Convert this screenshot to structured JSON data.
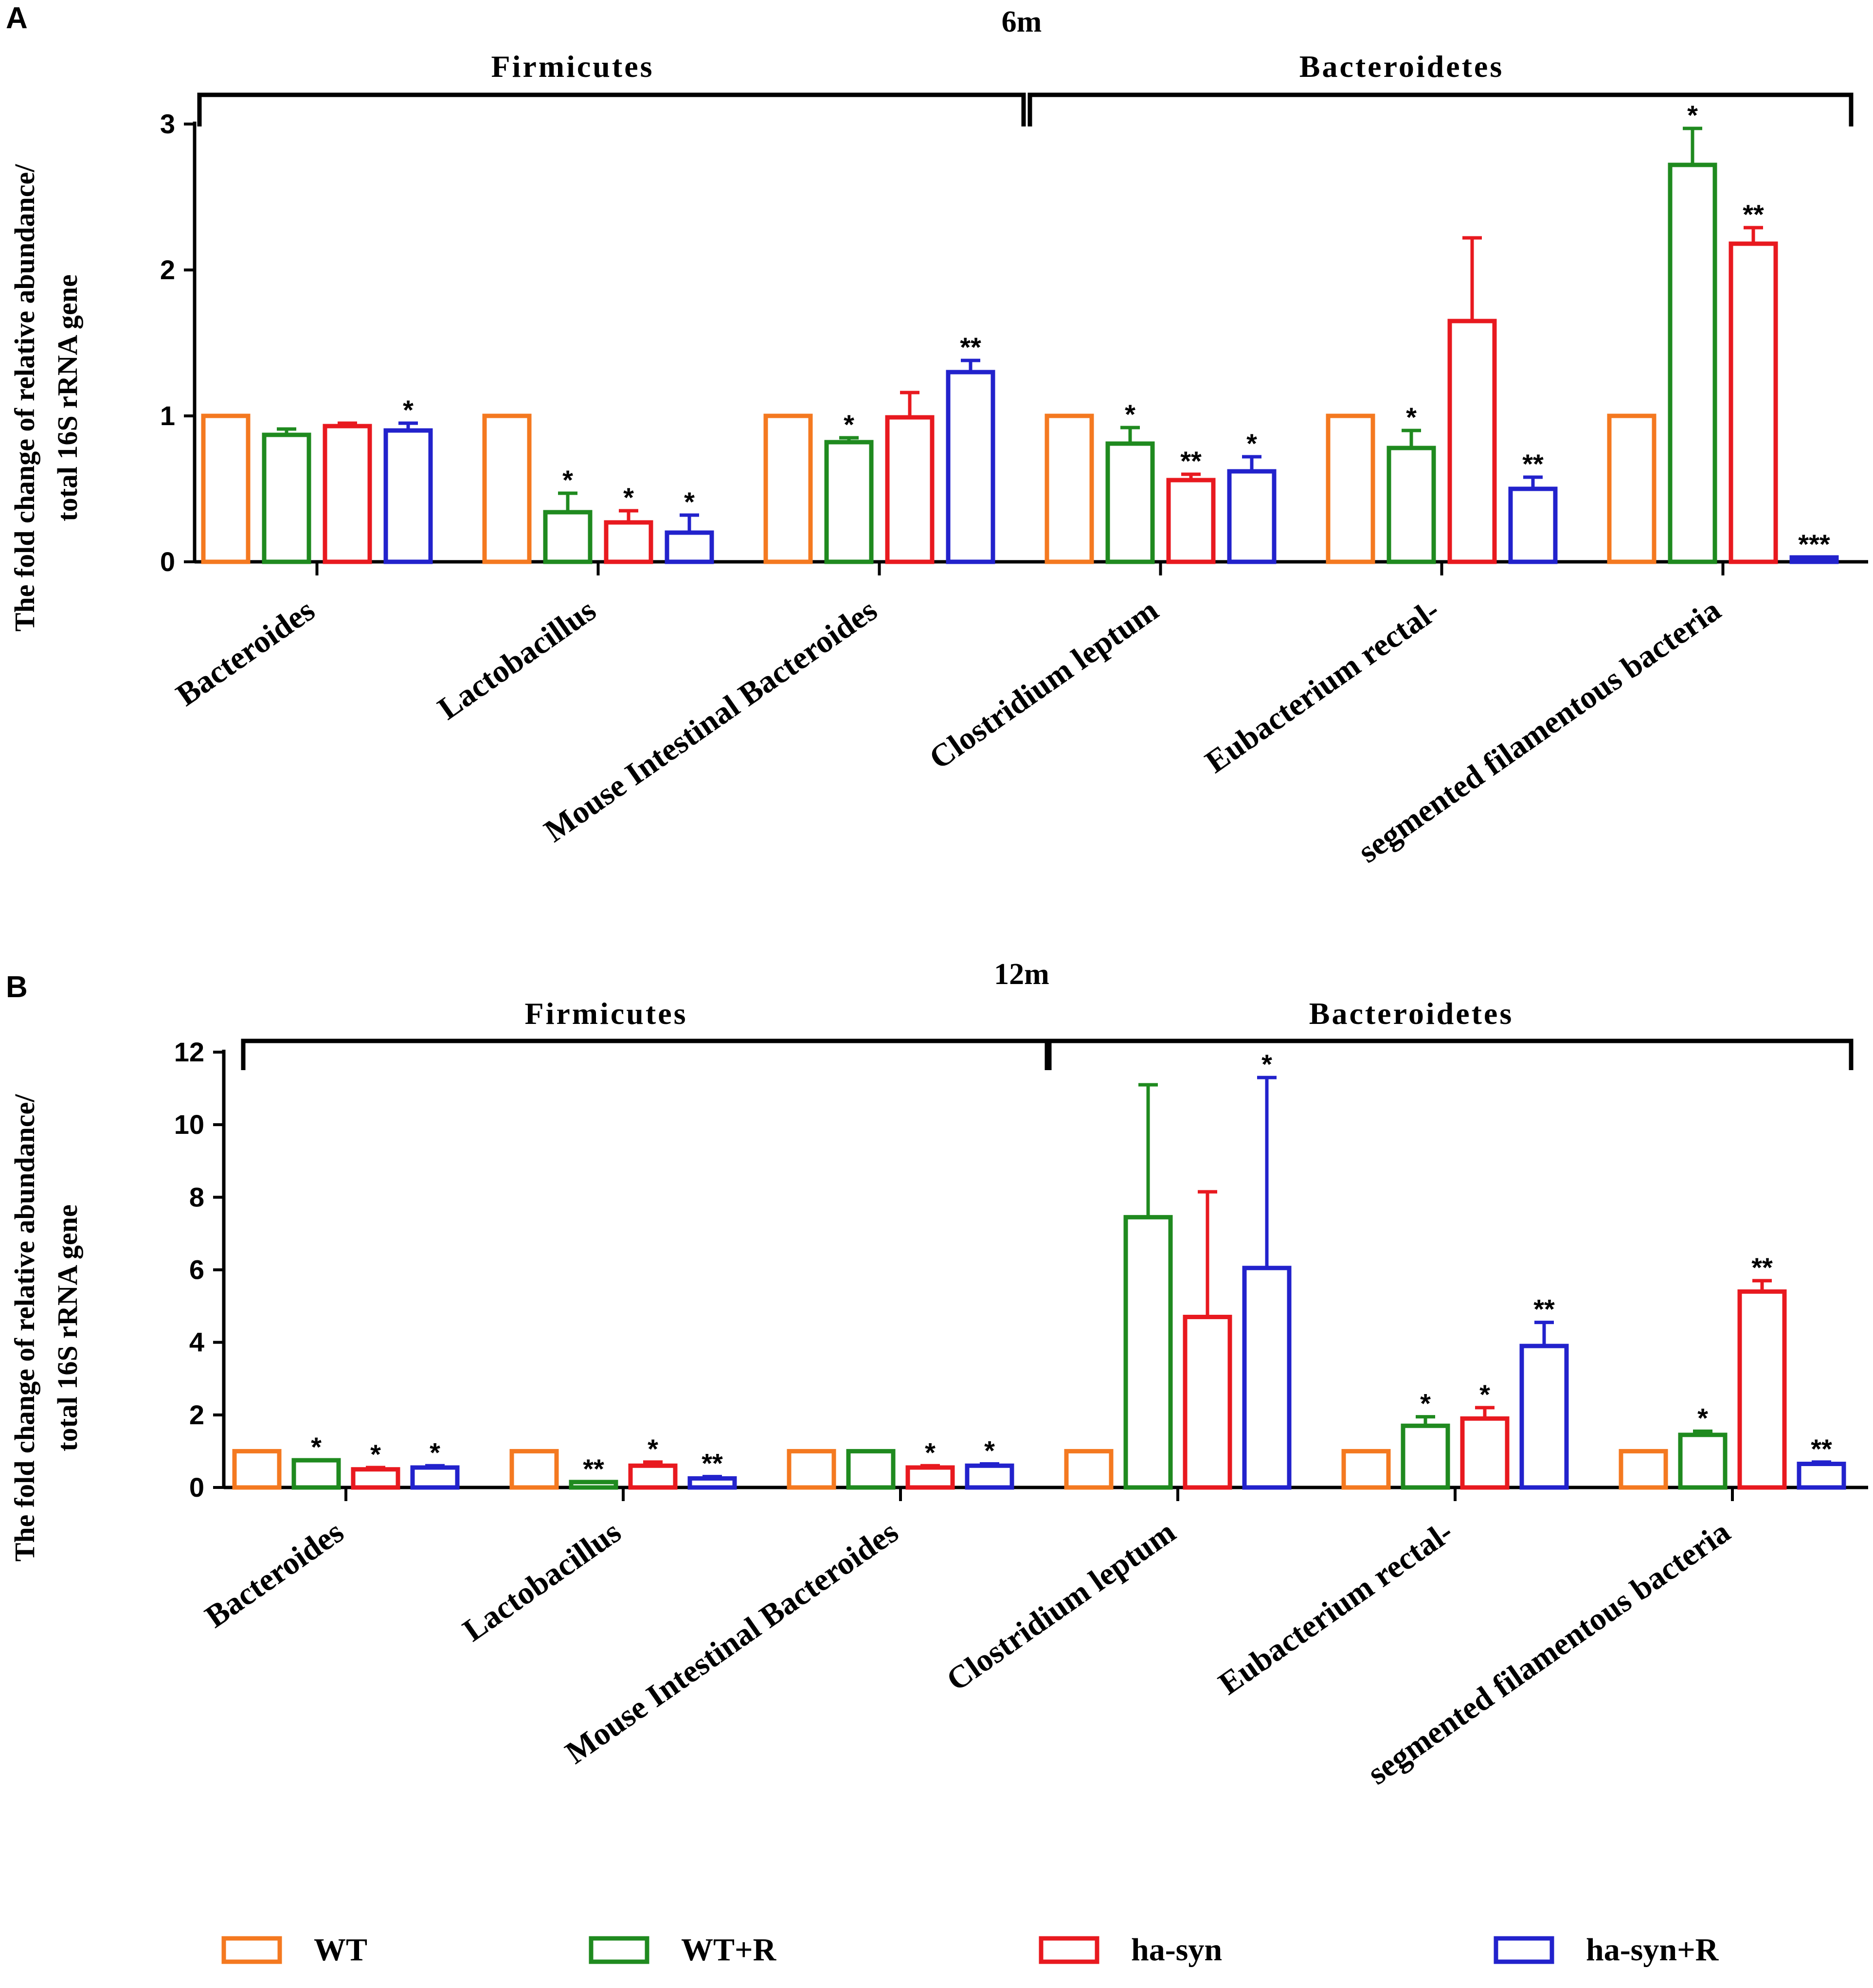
{
  "legend": [
    {
      "label": "WT",
      "color": "#F47920"
    },
    {
      "label": "WT+R",
      "color": "#1F8A1F"
    },
    {
      "label": "ha-syn",
      "color": "#E8191F"
    },
    {
      "label": "ha-syn+R",
      "color": "#2222CC"
    }
  ],
  "chart_data": [
    {
      "type": "bar",
      "panel": "A",
      "title": "6m",
      "ylabel_line1": "The fold change of relative abundance/",
      "ylabel_line2": "total 16S rRNA gene",
      "ylim": [
        0,
        3
      ],
      "yticks": [
        "0",
        "1",
        "2",
        "3"
      ],
      "groups": [
        {
          "label": "Firmicutes",
          "categories": [
            0,
            2
          ]
        },
        {
          "label": "Bacteroidetes",
          "categories": [
            3,
            5
          ]
        }
      ],
      "categories": [
        "Bacteroides",
        "Lactobacillus",
        "Mouse Intestinal Bacteroides",
        "Clostridium leptum",
        "Eubacterium rectal-",
        "segmented filamentous bacteria"
      ],
      "series": [
        {
          "name": "WT",
          "values": [
            1,
            1,
            1,
            1,
            1,
            1
          ],
          "errors": [
            0,
            0,
            0,
            0,
            0,
            0
          ],
          "sig": [
            "",
            "",
            "",
            "",
            "",
            ""
          ]
        },
        {
          "name": "WT+R",
          "values": [
            0.87,
            0.34,
            0.82,
            0.81,
            0.78,
            2.72
          ],
          "errors": [
            0.04,
            0.13,
            0.03,
            0.11,
            0.12,
            0.25
          ],
          "sig": [
            "",
            "*",
            "*",
            "*",
            "*",
            "*"
          ]
        },
        {
          "name": "ha-syn",
          "values": [
            0.93,
            0.27,
            0.99,
            0.56,
            1.65,
            2.18
          ],
          "errors": [
            0.02,
            0.08,
            0.17,
            0.04,
            0.57,
            0.11
          ],
          "sig": [
            "",
            "*",
            "",
            "**",
            "",
            "**"
          ]
        },
        {
          "name": "ha-syn+R",
          "values": [
            0.9,
            0.2,
            1.3,
            0.62,
            0.5,
            0.03
          ],
          "errors": [
            0.05,
            0.12,
            0.08,
            0.1,
            0.08,
            0.0
          ],
          "sig": [
            "*",
            "*",
            "**",
            "*",
            "**",
            "***"
          ]
        }
      ]
    },
    {
      "type": "bar",
      "panel": "B",
      "title": "12m",
      "ylabel_line1": "The fold change of relative abundance/",
      "ylabel_line2": "total 16S rRNA gene",
      "ylim": [
        0,
        12
      ],
      "yticks": [
        "0",
        "2",
        "4",
        "6",
        "8",
        "10",
        "12"
      ],
      "groups": [
        {
          "label": "Firmicutes",
          "categories": [
            0,
            2
          ]
        },
        {
          "label": "Bacteroidetes",
          "categories": [
            3,
            5
          ]
        }
      ],
      "categories": [
        "Bacteroides",
        "Lactobacillus",
        "Mouse Intestinal Bacteroides",
        "Clostridium leptum",
        "Eubacterium rectal-",
        "segmented filamentous bacteria"
      ],
      "series": [
        {
          "name": "WT",
          "values": [
            1,
            1,
            1,
            1,
            1,
            1
          ],
          "errors": [
            0,
            0,
            0,
            0,
            0,
            0
          ],
          "sig": [
            "",
            "",
            "",
            "",
            "",
            ""
          ]
        },
        {
          "name": "WT+R",
          "values": [
            0.75,
            0.15,
            1.0,
            7.45,
            1.7,
            1.45
          ],
          "errors": [
            0.0,
            0.0,
            0.0,
            3.65,
            0.25,
            0.1
          ],
          "sig": [
            "*",
            "**",
            "",
            "",
            "*",
            "*"
          ]
        },
        {
          "name": "ha-syn",
          "values": [
            0.5,
            0.6,
            0.55,
            4.7,
            1.9,
            5.4
          ],
          "errors": [
            0.05,
            0.1,
            0.05,
            3.45,
            0.3,
            0.3
          ],
          "sig": [
            "*",
            "*",
            "*",
            "",
            "*",
            "**"
          ]
        },
        {
          "name": "ha-syn+R",
          "values": [
            0.55,
            0.25,
            0.6,
            6.05,
            3.9,
            0.65
          ],
          "errors": [
            0.05,
            0.05,
            0.05,
            5.25,
            0.65,
            0.05
          ],
          "sig": [
            "*",
            "**",
            "*",
            "*",
            "**",
            "**"
          ]
        }
      ]
    }
  ]
}
